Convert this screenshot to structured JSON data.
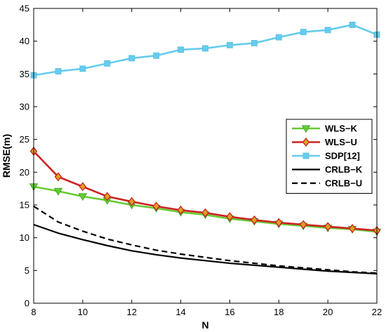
{
  "chart_data": {
    "type": "line",
    "title": "",
    "xlabel": "N",
    "ylabel": "RMSE(m)",
    "xlim": [
      8,
      22
    ],
    "ylim": [
      0,
      45
    ],
    "xticks": [
      8,
      10,
      12,
      14,
      16,
      18,
      20,
      22
    ],
    "yticks": [
      0,
      5,
      10,
      15,
      20,
      25,
      30,
      35,
      40,
      45
    ],
    "xtick_labels": [
      "8",
      "10",
      "12",
      "14",
      "16",
      "18",
      "20",
      "22"
    ],
    "ytick_labels": [
      "0",
      "5",
      "10",
      "15",
      "20",
      "25",
      "30",
      "35",
      "40",
      "45"
    ],
    "grid": false,
    "legend_position": "center-right",
    "x": [
      8,
      9,
      10,
      11,
      12,
      13,
      14,
      15,
      16,
      17,
      18,
      19,
      20,
      21,
      22
    ],
    "series": [
      {
        "name": "WLS−K",
        "color": "#66cc33",
        "marker": "triangle-down",
        "line": "solid",
        "values": [
          17.8,
          17.1,
          16.3,
          15.7,
          15.0,
          14.5,
          13.9,
          13.5,
          12.9,
          12.5,
          12.1,
          11.8,
          11.5,
          11.3,
          10.9
        ]
      },
      {
        "name": "WLS−U",
        "color": "#cc2222",
        "marker": "diamond",
        "line": "solid",
        "values": [
          23.2,
          19.3,
          17.8,
          16.3,
          15.5,
          14.8,
          14.2,
          13.8,
          13.2,
          12.7,
          12.3,
          12.0,
          11.7,
          11.4,
          11.1
        ]
      },
      {
        "name": "SDP[12]",
        "color": "#66ccee",
        "marker": "square",
        "line": "solid",
        "values": [
          34.8,
          35.4,
          35.8,
          36.6,
          37.4,
          37.8,
          38.7,
          38.9,
          39.4,
          39.7,
          40.6,
          41.4,
          41.7,
          42.5,
          41.0
        ]
      },
      {
        "name": "CRLB−K",
        "color": "#000000",
        "marker": "none",
        "line": "solid",
        "values": [
          12.0,
          10.7,
          9.7,
          8.8,
          8.0,
          7.4,
          6.9,
          6.5,
          6.1,
          5.8,
          5.5,
          5.2,
          4.9,
          4.7,
          4.5
        ]
      },
      {
        "name": "CRLB−U",
        "color": "#000000",
        "marker": "none",
        "line": "dashed",
        "values": [
          14.8,
          12.4,
          11.0,
          9.8,
          8.9,
          8.1,
          7.5,
          7.0,
          6.5,
          6.1,
          5.7,
          5.4,
          5.1,
          4.8,
          4.6
        ]
      }
    ]
  }
}
